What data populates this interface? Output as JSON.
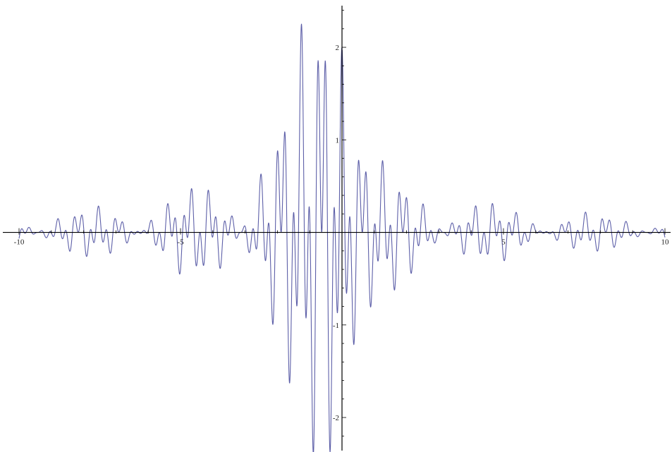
{
  "chart_data": {
    "type": "line",
    "title": "",
    "xlabel": "",
    "ylabel": "",
    "xlim": [
      -10,
      10
    ],
    "ylim": [
      -2.35,
      2.45
    ],
    "grid": false,
    "legend": "none",
    "color": "#5d5fa8",
    "x_ticks": [
      -10,
      -5,
      5,
      10
    ],
    "y_ticks": [
      -2,
      -1,
      1,
      2
    ],
    "x_tick_labels": [
      "-10",
      "-5",
      "5",
      "10"
    ],
    "y_tick_labels": [
      "-2",
      "-1",
      "1",
      "2"
    ],
    "minor_x_step": 1,
    "minor_y_step": 0.2,
    "series": [
      {
        "function": "(1/x - 1/(x^2+1)) * sin(x) * (cos(10x) + cos(25x))",
        "samples": 3000,
        "features": {
          "symmetry": "even",
          "peak_near_zero": 2.3,
          "trough_near_zero": -2.05,
          "secondary_peak_near_x_2_7": 1.18,
          "small_lobe_near_x_7": 0.43
        }
      }
    ]
  }
}
